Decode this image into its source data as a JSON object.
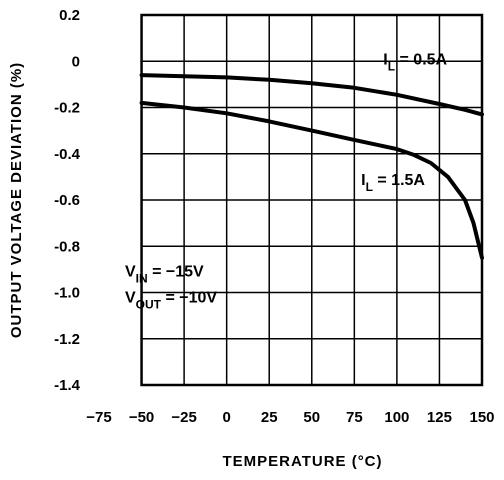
{
  "chart_data": {
    "type": "line",
    "xlabel": "TEMPERATURE (°C)",
    "ylabel": "OUTPUT VOLTAGE DEVIATION (%)",
    "xlim": [
      -75,
      150
    ],
    "ylim": [
      -1.4,
      0.2
    ],
    "x_ticks": [
      -75,
      -50,
      -25,
      0,
      25,
      50,
      75,
      100,
      125,
      150
    ],
    "y_ticks": [
      0.2,
      0,
      -0.2,
      -0.4,
      -0.6,
      -0.8,
      -1.0,
      -1.2,
      -1.4
    ],
    "x_tick_labels": [
      "−75",
      "−50",
      "−25",
      "0",
      "25",
      "50",
      "75",
      "100",
      "125",
      "150"
    ],
    "y_tick_labels": [
      "0.2",
      "0",
      "-0.2",
      "-0.4",
      "-0.6",
      "-0.8",
      "-1.0",
      "-1.2",
      "-1.4"
    ],
    "grid": true,
    "series": [
      {
        "name": "I_L = 0.5A",
        "label_main": "I",
        "label_sub": "L",
        "label_rest": " = 0.5A",
        "x": [
          -50,
          -25,
          0,
          25,
          50,
          75,
          100,
          125,
          140,
          150
        ],
        "y": [
          -0.06,
          -0.065,
          -0.07,
          -0.08,
          -0.095,
          -0.115,
          -0.145,
          -0.185,
          -0.21,
          -0.23
        ]
      },
      {
        "name": "I_L = 1.5A",
        "label_main": "I",
        "label_sub": "L",
        "label_rest": " = 1.5A",
        "x": [
          -50,
          -25,
          0,
          25,
          50,
          75,
          100,
          110,
          120,
          130,
          140,
          145,
          150
        ],
        "y": [
          -0.18,
          -0.2,
          -0.225,
          -0.26,
          -0.3,
          -0.34,
          -0.38,
          -0.405,
          -0.44,
          -0.5,
          -0.6,
          -0.7,
          -0.85
        ]
      }
    ],
    "conditions": [
      {
        "main": "V",
        "sub": "IN",
        "rest": " = −15V"
      },
      {
        "main": "V",
        "sub": "OUT",
        "rest": " = −10V"
      }
    ]
  }
}
